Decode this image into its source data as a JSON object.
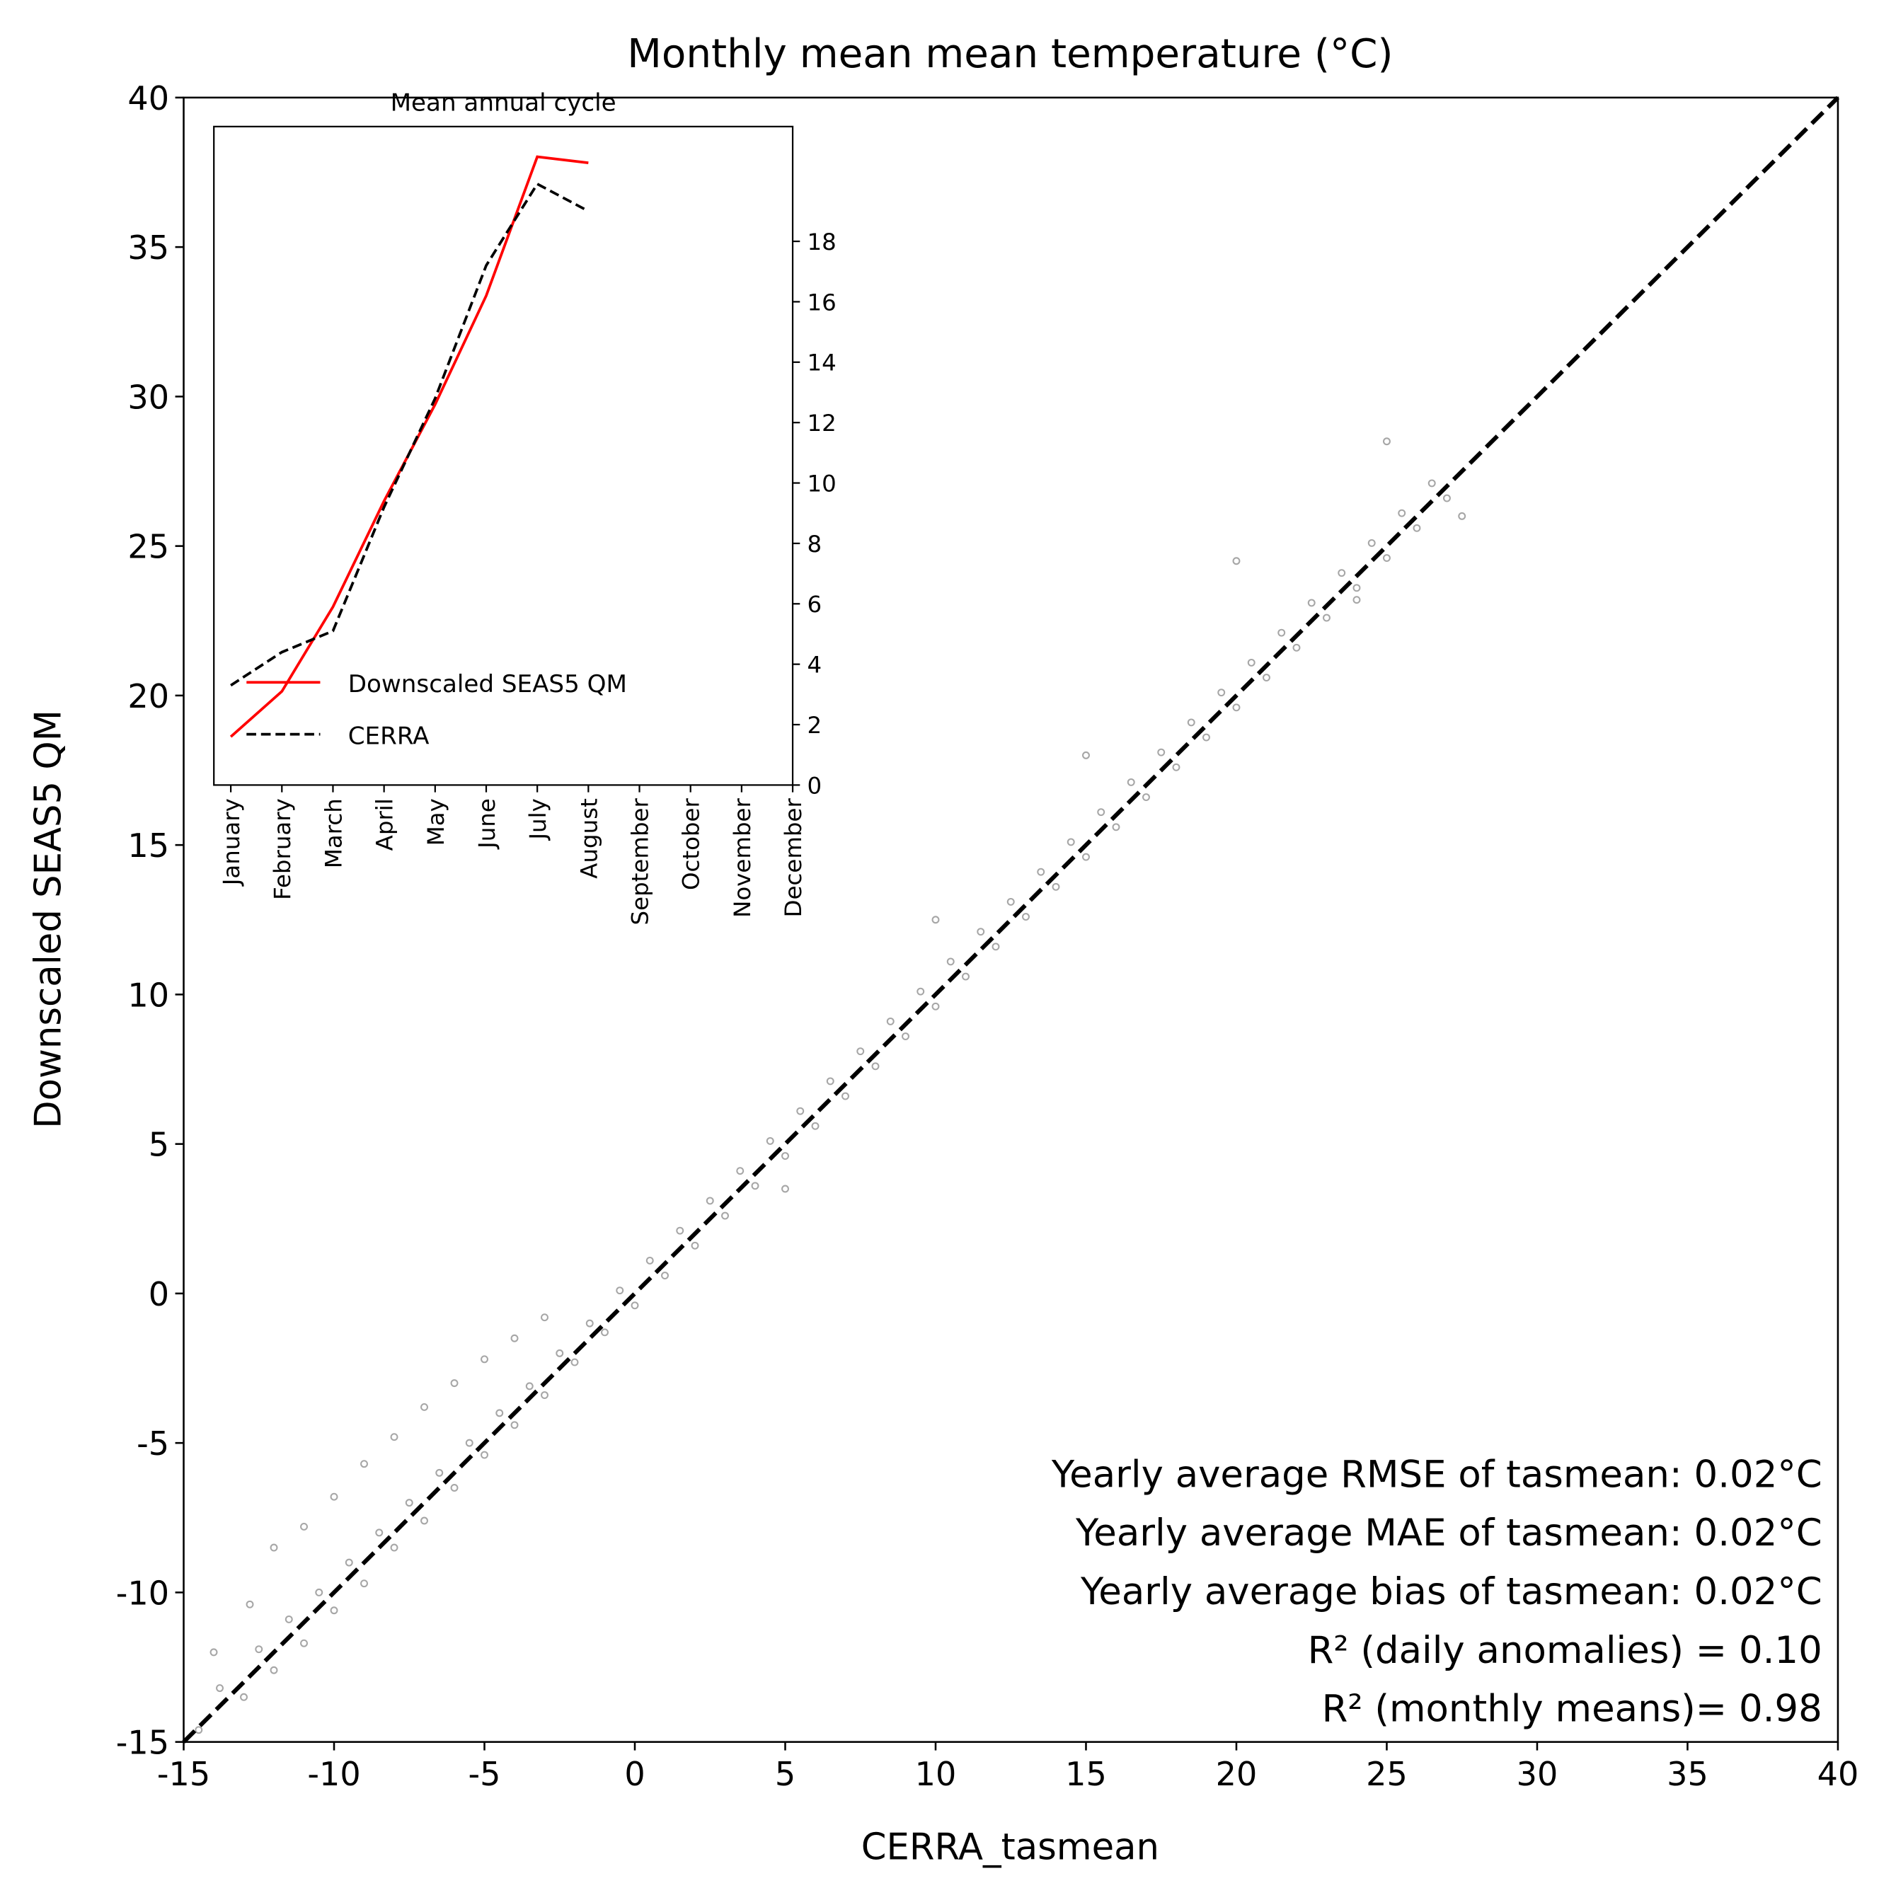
{
  "chart_data": [
    {
      "type": "scatter",
      "title": "Monthly mean mean temperature (°C)",
      "x_label": "CERRA_tasmean",
      "y_label": "Downscaled SEAS5 QM",
      "color": "#808080",
      "identity_line": true,
      "x": [
        -14.5,
        -13.8,
        -13,
        -12.5,
        -12,
        -11.5,
        -11,
        -10.5,
        -10,
        -9.5,
        -9,
        -8.5,
        -8,
        -7.5,
        -7,
        -6.5,
        -6,
        -5.5,
        -5,
        -4.5,
        -4,
        -3.5,
        -3,
        -2.5,
        -2,
        -1.5,
        -1,
        -0.5,
        0,
        0.5,
        1,
        1.5,
        2,
        2.5,
        3,
        3.5,
        4,
        4.5,
        5,
        5.5,
        6,
        6.5,
        7,
        7.5,
        8,
        8.5,
        9,
        9.5,
        10,
        10.5,
        11,
        11.5,
        12,
        12.5,
        13,
        13.5,
        14,
        14.5,
        15,
        15.5,
        16,
        16.5,
        17,
        17.5,
        18,
        18.5,
        19,
        19.5,
        20,
        20.5,
        21,
        21.5,
        22,
        22.5,
        23,
        23.5,
        24,
        24.5,
        25,
        25.5,
        26,
        26.5,
        27,
        -12,
        -11,
        -10,
        -9,
        -8,
        -7,
        -6,
        -5,
        -4,
        -3,
        -14,
        -12.8,
        25,
        24,
        20,
        15,
        27.5,
        10,
        5
      ],
      "y": [
        -14.6,
        -13.2,
        -13.5,
        -11.9,
        -12.6,
        -10.9,
        -11.7,
        -10.0,
        -10.6,
        -9.0,
        -9.7,
        -8.0,
        -8.5,
        -7.0,
        -7.6,
        -6.0,
        -6.5,
        -5.0,
        -5.4,
        -4.0,
        -4.4,
        -3.1,
        -3.4,
        -2.0,
        -2.3,
        -1.0,
        -1.3,
        0.1,
        -0.4,
        1.1,
        0.6,
        2.1,
        1.6,
        3.1,
        2.6,
        4.1,
        3.6,
        5.1,
        4.6,
        6.1,
        5.6,
        7.1,
        6.6,
        8.1,
        7.6,
        9.1,
        8.6,
        10.1,
        9.6,
        11.1,
        10.6,
        12.1,
        11.6,
        13.1,
        12.6,
        14.1,
        13.6,
        15.1,
        14.6,
        16.1,
        15.6,
        17.1,
        16.6,
        18.1,
        17.6,
        19.1,
        18.6,
        20.1,
        19.6,
        21.1,
        20.6,
        22.1,
        21.6,
        23.1,
        22.6,
        24.1,
        23.6,
        25.1,
        24.6,
        26.1,
        25.6,
        27.1,
        26.6,
        -8.5,
        -7.8,
        -6.8,
        -5.7,
        -4.8,
        -3.8,
        -3,
        -2.2,
        -1.5,
        -0.8,
        -12,
        -10.4,
        28.5,
        23.2,
        24.5,
        18,
        26,
        12.5,
        3.5
      ],
      "xlim": [
        -15,
        40
      ],
      "xticks": [
        -15,
        -10,
        -5,
        0,
        5,
        10,
        15,
        20,
        25,
        30,
        35,
        40
      ],
      "ylim": [
        -15,
        40
      ],
      "yticks": [
        -15,
        -10,
        -5,
        0,
        5,
        10,
        15,
        20,
        25,
        30,
        35,
        40
      ],
      "annotations": [
        "Yearly average RMSE of tasmean: 0.02°C",
        "Yearly average MAE of tasmean: 0.02°C",
        "Yearly average bias of tasmean: 0.02°C",
        "R² (daily anomalies) = 0.10",
        "R² (monthly means)= 0.98"
      ]
    },
    {
      "type": "line",
      "title": "Mean annual cycle",
      "categories": [
        "January",
        "February",
        "March",
        "April",
        "May",
        "June",
        "July",
        "August",
        "September",
        "October",
        "November",
        "December"
      ],
      "series": [
        {
          "name": "Downscaled SEAS5 QM",
          "color": "#ff0000",
          "style": "solid",
          "values": [
            1.6,
            3.1,
            5.9,
            9.4,
            12.6,
            16.2,
            20.8,
            20.6,
            null,
            null,
            null,
            null
          ]
        },
        {
          "name": "CERRA",
          "color": "#000000",
          "style": "dashed",
          "values": [
            3.3,
            4.4,
            5.1,
            9.2,
            12.8,
            17.2,
            19.9,
            19.0,
            null,
            null,
            null,
            null
          ]
        }
      ],
      "ylim": [
        0,
        21.8
      ],
      "yticks": [
        0,
        2,
        4,
        6,
        8,
        10,
        12,
        14,
        16,
        18
      ],
      "legend": "lower left"
    }
  ]
}
